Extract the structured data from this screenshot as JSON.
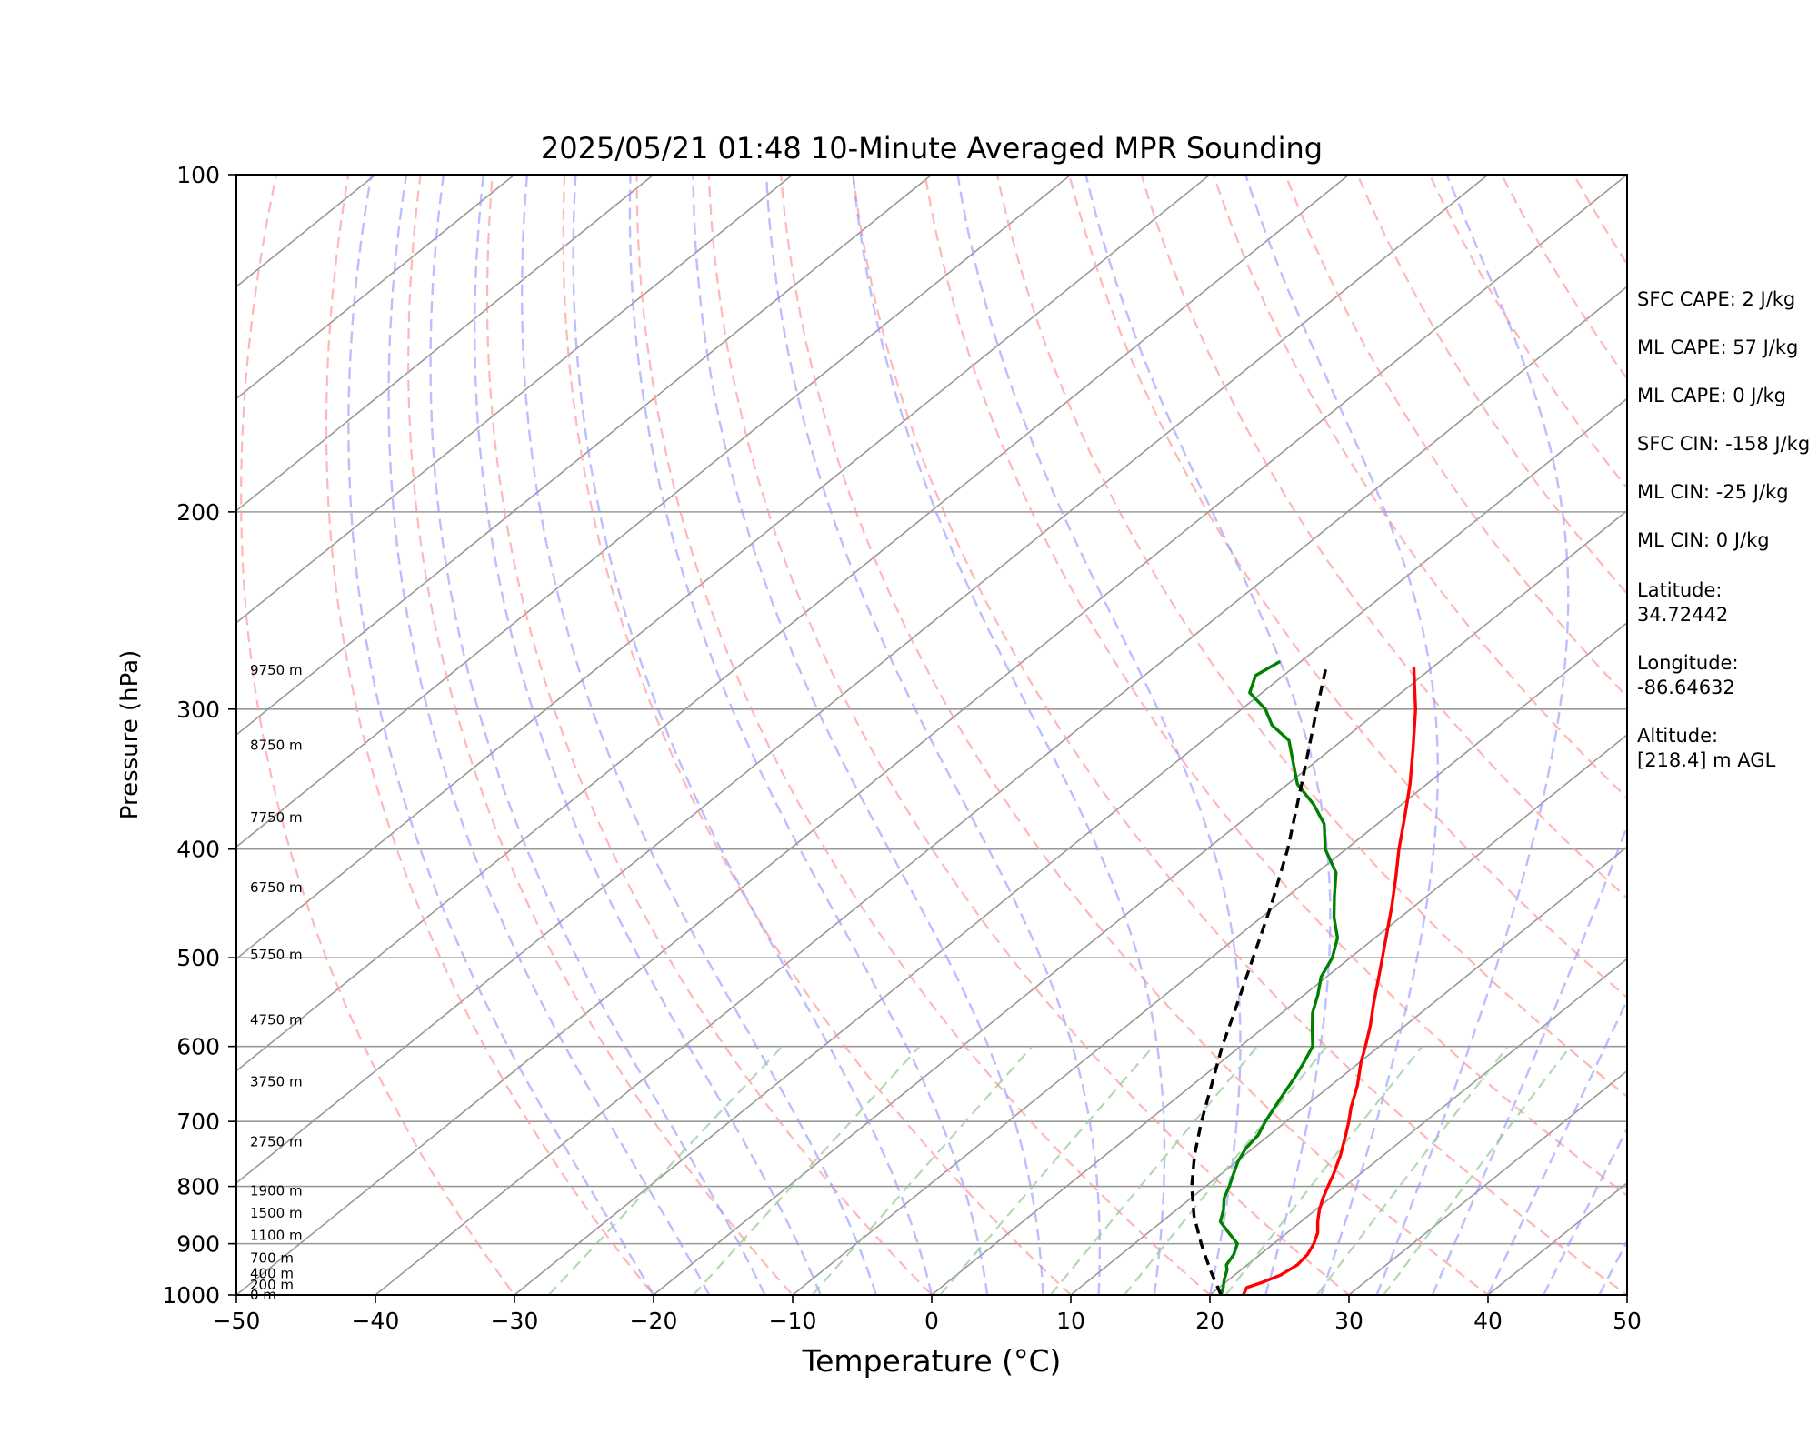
{
  "chart_data": {
    "type": "line",
    "chart_kind": "skew-T log-P sounding",
    "title": "2025/05/21 01:48 10-Minute Averaged MPR Sounding",
    "xlabel": "Temperature (°C)",
    "ylabel": "Pressure (hPa)",
    "xlim": [
      -50,
      50
    ],
    "ylim": [
      1000,
      100
    ],
    "y_scale": "log",
    "x_ticks": [
      "−50",
      "−40",
      "−30",
      "−20",
      "−10",
      "0",
      "10",
      "20",
      "30",
      "40",
      "50"
    ],
    "x_tick_values": [
      -50,
      -40,
      -30,
      -20,
      -10,
      0,
      10,
      20,
      30,
      40,
      50
    ],
    "y_ticks": [
      "100",
      "200",
      "300",
      "400",
      "500",
      "600",
      "700",
      "800",
      "900",
      "1000"
    ],
    "y_tick_values": [
      100,
      200,
      300,
      400,
      500,
      600,
      700,
      800,
      900,
      1000
    ],
    "grid": true,
    "series": [
      {
        "color": "#ff0000",
        "style": "solid",
        "points": [
          [
            1000,
            22.4
          ],
          [
            985,
            22.0
          ],
          [
            975,
            22.6
          ],
          [
            960,
            23.3
          ],
          [
            940,
            23.6
          ],
          [
            920,
            23.4
          ],
          [
            900,
            22.9
          ],
          [
            880,
            22.2
          ],
          [
            860,
            21.2
          ],
          [
            840,
            20.3
          ],
          [
            820,
            19.5
          ],
          [
            800,
            18.8
          ],
          [
            780,
            18.1
          ],
          [
            750,
            16.9
          ],
          [
            720,
            15.5
          ],
          [
            700,
            14.5
          ],
          [
            680,
            13.4
          ],
          [
            650,
            11.9
          ],
          [
            620,
            10.1
          ],
          [
            600,
            9.0
          ],
          [
            575,
            7.5
          ],
          [
            550,
            5.8
          ],
          [
            525,
            4.1
          ],
          [
            500,
            2.3
          ],
          [
            475,
            0.4
          ],
          [
            450,
            -1.6
          ],
          [
            425,
            -3.8
          ],
          [
            400,
            -6.2
          ],
          [
            375,
            -8.6
          ],
          [
            350,
            -11.2
          ],
          [
            325,
            -14.2
          ],
          [
            300,
            -17.5
          ],
          [
            285,
            -19.8
          ],
          [
            275,
            -21.4
          ]
        ]
      },
      {
        "color": "#008000",
        "style": "solid",
        "points": [
          [
            1000,
            20.8
          ],
          [
            985,
            20.3
          ],
          [
            970,
            19.7
          ],
          [
            950,
            19.0
          ],
          [
            940,
            18.5
          ],
          [
            920,
            18.1
          ],
          [
            900,
            17.4
          ],
          [
            880,
            15.8
          ],
          [
            860,
            14.2
          ],
          [
            840,
            13.4
          ],
          [
            820,
            12.4
          ],
          [
            800,
            11.7
          ],
          [
            780,
            10.9
          ],
          [
            760,
            10.1
          ],
          [
            740,
            9.5
          ],
          [
            720,
            9.2
          ],
          [
            700,
            8.5
          ],
          [
            680,
            7.9
          ],
          [
            660,
            7.3
          ],
          [
            640,
            6.7
          ],
          [
            620,
            6.0
          ],
          [
            600,
            5.2
          ],
          [
            580,
            3.7
          ],
          [
            560,
            2.2
          ],
          [
            540,
            1.0
          ],
          [
            520,
            -0.4
          ],
          [
            500,
            -1.3
          ],
          [
            480,
            -2.7
          ],
          [
            460,
            -4.8
          ],
          [
            440,
            -6.7
          ],
          [
            420,
            -8.6
          ],
          [
            400,
            -11.5
          ],
          [
            380,
            -13.8
          ],
          [
            365,
            -16.3
          ],
          [
            350,
            -19.3
          ],
          [
            335,
            -21.5
          ],
          [
            320,
            -23.8
          ],
          [
            310,
            -26.4
          ],
          [
            300,
            -28.3
          ],
          [
            290,
            -30.9
          ],
          [
            280,
            -32.0
          ],
          [
            272,
            -31.5
          ]
        ]
      },
      {
        "color": "#000000",
        "style": "dashed",
        "points": [
          [
            1000,
            20.8
          ],
          [
            950,
            17.8
          ],
          [
            900,
            14.8
          ],
          [
            850,
            11.8
          ],
          [
            800,
            9.0
          ],
          [
            750,
            6.4
          ],
          [
            700,
            3.9
          ],
          [
            650,
            1.4
          ],
          [
            600,
            -1.3
          ],
          [
            550,
            -4.0
          ],
          [
            500,
            -7.0
          ],
          [
            450,
            -10.3
          ],
          [
            400,
            -14.2
          ],
          [
            350,
            -19.0
          ],
          [
            300,
            -24.6
          ],
          [
            275,
            -27.7
          ]
        ]
      }
    ],
    "height_labels": [
      {
        "text": "0 m",
        "pressure": 1000
      },
      {
        "text": "200 m",
        "pressure": 980
      },
      {
        "text": "400 m",
        "pressure": 957
      },
      {
        "text": "700 m",
        "pressure": 927
      },
      {
        "text": "1100 m",
        "pressure": 885
      },
      {
        "text": "1500 m",
        "pressure": 845
      },
      {
        "text": "1900 m",
        "pressure": 807
      },
      {
        "text": "2750 m",
        "pressure": 730
      },
      {
        "text": "3750 m",
        "pressure": 645
      },
      {
        "text": "4750 m",
        "pressure": 568
      },
      {
        "text": "5750 m",
        "pressure": 497
      },
      {
        "text": "6750 m",
        "pressure": 433
      },
      {
        "text": "7750 m",
        "pressure": 375
      },
      {
        "text": "8750 m",
        "pressure": 323
      },
      {
        "text": "9750 m",
        "pressure": 277
      }
    ],
    "annotations": [
      "SFC CAPE: 2 J/kg",
      "ML CAPE: 57 J/kg",
      "ML CAPE: 0 J/kg",
      "SFC CIN: -158 J/kg",
      "ML CIN: -25 J/kg",
      "ML CIN: 0 J/kg",
      "Latitude:",
      "34.72442",
      "Longitude:",
      "-86.64632",
      "Altitude:",
      "[218.4] m AGL"
    ],
    "reference_lines": {
      "dry_adiabats_color": "#ff9999",
      "moist_adiabats_color": "#9999ff",
      "mixing_ratio_color": "#99cc99",
      "isotherm_color": "#999999",
      "isobar_color": "#999999"
    }
  }
}
